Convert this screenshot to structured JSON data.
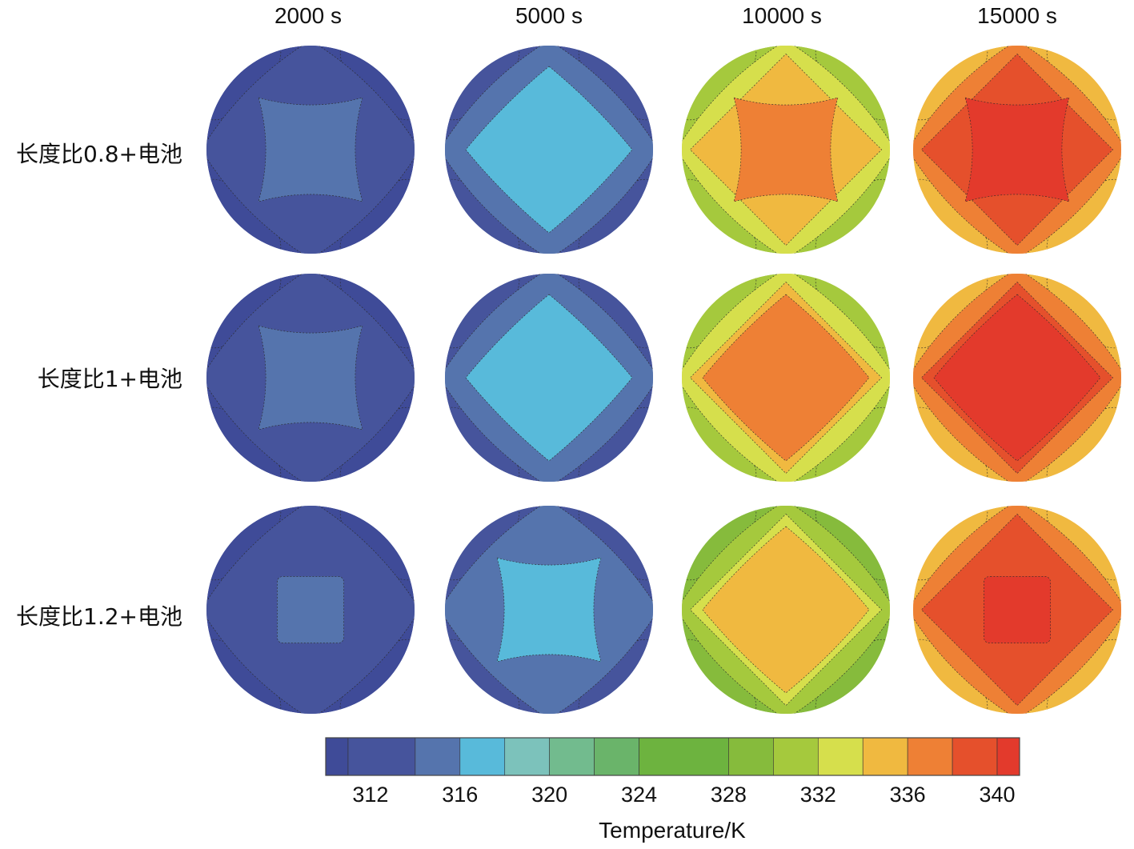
{
  "chart_data": {
    "type": "heatmap",
    "title": "",
    "columns": [
      "2000 s",
      "5000 s",
      "10000 s",
      "15000 s"
    ],
    "rows": [
      "长度比0.8+电池",
      "长度比1+电池",
      "长度比1.2+电池"
    ],
    "colorbar": {
      "title": "Temperature/K",
      "range": [
        310,
        341
      ],
      "ticks": [
        "312",
        "316",
        "320",
        "324",
        "328",
        "332",
        "336",
        "340"
      ],
      "tick_values": [
        312,
        316,
        320,
        324,
        328,
        332,
        336,
        340
      ],
      "bins": [
        {
          "min": 310,
          "max": 311,
          "color": "#3f4b98"
        },
        {
          "min": 311,
          "max": 314,
          "color": "#46549c"
        },
        {
          "min": 314,
          "max": 316,
          "color": "#5574ad"
        },
        {
          "min": 316,
          "max": 318,
          "color": "#58bada"
        },
        {
          "min": 318,
          "max": 320,
          "color": "#7cc2bb"
        },
        {
          "min": 320,
          "max": 322,
          "color": "#72bb8e"
        },
        {
          "min": 322,
          "max": 324,
          "color": "#6ab46a"
        },
        {
          "min": 324,
          "max": 328,
          "color": "#6db33f"
        },
        {
          "min": 328,
          "max": 330,
          "color": "#86bb3c"
        },
        {
          "min": 330,
          "max": 332,
          "color": "#a5c93d"
        },
        {
          "min": 332,
          "max": 334,
          "color": "#d6df4c"
        },
        {
          "min": 334,
          "max": 336,
          "color": "#f0b940"
        },
        {
          "min": 336,
          "max": 338,
          "color": "#ee8035"
        },
        {
          "min": 338,
          "max": 340,
          "color": "#e5502c"
        },
        {
          "min": 340,
          "max": 341,
          "color": "#e33a2c"
        }
      ]
    },
    "panels": [
      [
        {
          "time": "2000 s",
          "center": 315,
          "inner": 313,
          "outer": 310,
          "shape": "cushion"
        },
        {
          "time": "5000 s",
          "center": 317,
          "inner": 315,
          "outer": 313,
          "shape": "diamond"
        },
        {
          "time": "10000 s",
          "center": 337,
          "inner": 335,
          "mid": 333,
          "outer": 331,
          "shape": "cushion"
        },
        {
          "time": "15000 s",
          "center": 340.5,
          "inner": 339,
          "mid": 337,
          "outer": 335,
          "shape": "cushion"
        }
      ],
      [
        {
          "time": "2000 s",
          "center": 315,
          "inner": 313,
          "outer": 310,
          "shape": "cushion"
        },
        {
          "time": "5000 s",
          "center": 317,
          "inner": 315,
          "outer": 313,
          "shape": "diamond"
        },
        {
          "time": "10000 s",
          "center": 337,
          "inner": 335,
          "mid": 333,
          "outer": 331,
          "shape": "diamond"
        },
        {
          "time": "15000 s",
          "center": 340.5,
          "inner": 339,
          "mid": 337,
          "outer": 335,
          "shape": "diamond"
        }
      ],
      [
        {
          "time": "2000 s",
          "center": 315,
          "inner": 313,
          "outer": 310,
          "shape": "square"
        },
        {
          "time": "5000 s",
          "center": 317,
          "inner": 315,
          "outer": 313,
          "shape": "cushion"
        },
        {
          "time": "10000 s",
          "center": 335,
          "inner": 333,
          "mid": 331,
          "outer": 329,
          "shape": "diamond"
        },
        {
          "time": "15000 s",
          "center": 340.5,
          "inner": 339,
          "mid": 337,
          "outer": 335,
          "shape": "square"
        }
      ]
    ]
  }
}
